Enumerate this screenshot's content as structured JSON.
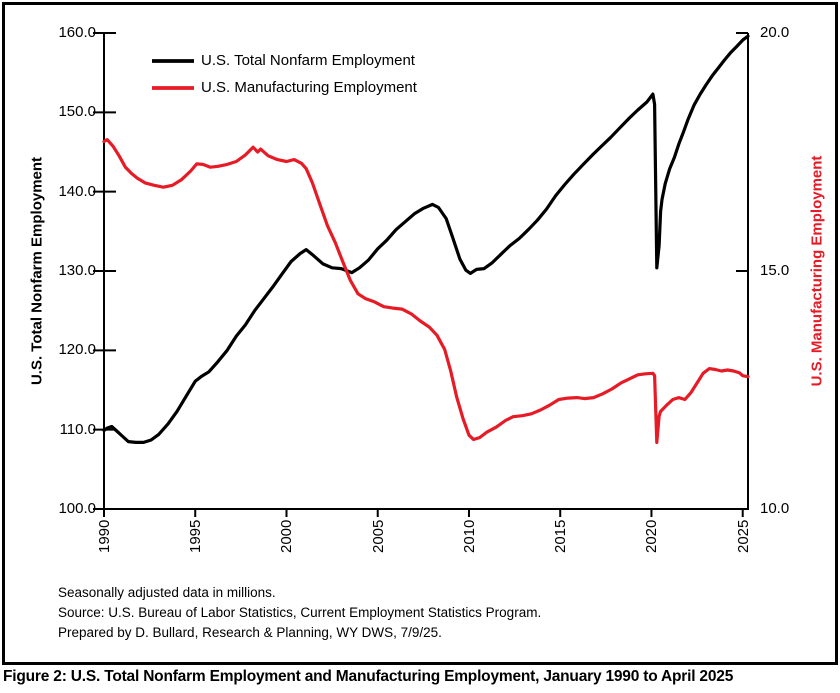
{
  "legend": {
    "series1": "U.S. Total Nonfarm Employment",
    "series2": "U.S. Manufacturing Employment"
  },
  "left_axis": {
    "title": "U.S. Total Nonfarm Employment",
    "ticks": [
      "160.0",
      "150.0",
      "140.0",
      "130.0",
      "120.0",
      "110.0",
      "100.0"
    ]
  },
  "right_axis": {
    "title": "U.S. Manufacturing Employment",
    "ticks": [
      "20.0",
      "15.0",
      "10.0"
    ]
  },
  "x_axis": {
    "ticks": [
      "1990",
      "1995",
      "2000",
      "2005",
      "2010",
      "2015",
      "2020",
      "2025"
    ]
  },
  "notes": [
    "Seasonally adjusted data in millions.",
    "Source: U.S. Bureau of Labor Statistics, Current Employment Statistics Program.",
    "Prepared by D. Bullard, Research & Planning, WY DWS, 7/9/25."
  ],
  "caption": "Figure 2: U.S. Total Nonfarm Employment and Manufacturing Employment, January 1990 to April 2025",
  "colors": {
    "nonfarm": "#000000",
    "manufacturing": "#e61b25"
  },
  "chart_data": {
    "type": "line",
    "title": "",
    "xlabel": "",
    "x_range": [
      1990,
      2025.29
    ],
    "left_ylabel": "U.S. Total Nonfarm Employment",
    "right_ylabel": "U.S. Manufacturing Employment",
    "left_ylim": [
      100,
      160
    ],
    "right_ylim": [
      10,
      20
    ],
    "grid": false,
    "legend_position": "top-left-inside",
    "units": "millions, seasonally adjusted",
    "series": [
      {
        "name": "U.S. Total Nonfarm Employment",
        "axis": "left",
        "color": "#000000",
        "points": [
          [
            1990.0,
            109.9
          ],
          [
            1990.17,
            110.2
          ],
          [
            1990.42,
            110.4
          ],
          [
            1990.67,
            109.9
          ],
          [
            1991.0,
            109.2
          ],
          [
            1991.33,
            108.5
          ],
          [
            1991.75,
            108.4
          ],
          [
            1992.17,
            108.4
          ],
          [
            1992.58,
            108.7
          ],
          [
            1993.0,
            109.4
          ],
          [
            1993.5,
            110.7
          ],
          [
            1994.0,
            112.3
          ],
          [
            1994.5,
            114.2
          ],
          [
            1995.0,
            116.1
          ],
          [
            1995.33,
            116.7
          ],
          [
            1995.75,
            117.3
          ],
          [
            1996.25,
            118.6
          ],
          [
            1996.75,
            120.0
          ],
          [
            1997.25,
            121.8
          ],
          [
            1997.75,
            123.2
          ],
          [
            1998.25,
            125.0
          ],
          [
            1998.75,
            126.5
          ],
          [
            1999.25,
            128.0
          ],
          [
            1999.75,
            129.6
          ],
          [
            2000.25,
            131.2
          ],
          [
            2000.75,
            132.2
          ],
          [
            2001.08,
            132.7
          ],
          [
            2001.5,
            131.9
          ],
          [
            2002.0,
            130.9
          ],
          [
            2002.5,
            130.4
          ],
          [
            2003.0,
            130.3
          ],
          [
            2003.58,
            129.8
          ],
          [
            2004.0,
            130.4
          ],
          [
            2004.5,
            131.4
          ],
          [
            2005.0,
            132.8
          ],
          [
            2005.5,
            133.9
          ],
          [
            2006.0,
            135.2
          ],
          [
            2006.5,
            136.2
          ],
          [
            2007.0,
            137.2
          ],
          [
            2007.5,
            137.9
          ],
          [
            2008.0,
            138.4
          ],
          [
            2008.33,
            138.0
          ],
          [
            2008.75,
            136.6
          ],
          [
            2009.08,
            134.4
          ],
          [
            2009.5,
            131.5
          ],
          [
            2009.83,
            130.1
          ],
          [
            2010.08,
            129.7
          ],
          [
            2010.42,
            130.2
          ],
          [
            2010.83,
            130.3
          ],
          [
            2011.25,
            131.0
          ],
          [
            2011.75,
            132.1
          ],
          [
            2012.25,
            133.2
          ],
          [
            2012.75,
            134.1
          ],
          [
            2013.25,
            135.2
          ],
          [
            2013.75,
            136.4
          ],
          [
            2014.25,
            137.8
          ],
          [
            2014.75,
            139.5
          ],
          [
            2015.25,
            140.9
          ],
          [
            2015.75,
            142.2
          ],
          [
            2016.25,
            143.4
          ],
          [
            2016.75,
            144.6
          ],
          [
            2017.25,
            145.7
          ],
          [
            2017.75,
            146.8
          ],
          [
            2018.25,
            148.0
          ],
          [
            2018.75,
            149.2
          ],
          [
            2019.25,
            150.3
          ],
          [
            2019.75,
            151.3
          ],
          [
            2020.08,
            152.3
          ],
          [
            2020.17,
            151.0
          ],
          [
            2020.29,
            130.4
          ],
          [
            2020.42,
            133.2
          ],
          [
            2020.5,
            137.5
          ],
          [
            2020.58,
            139.0
          ],
          [
            2020.75,
            141.0
          ],
          [
            2021.0,
            142.9
          ],
          [
            2021.25,
            144.3
          ],
          [
            2021.5,
            146.0
          ],
          [
            2021.75,
            147.5
          ],
          [
            2022.0,
            149.1
          ],
          [
            2022.33,
            150.9
          ],
          [
            2022.67,
            152.3
          ],
          [
            2023.0,
            153.5
          ],
          [
            2023.33,
            154.6
          ],
          [
            2023.67,
            155.6
          ],
          [
            2024.0,
            156.6
          ],
          [
            2024.33,
            157.5
          ],
          [
            2024.67,
            158.3
          ],
          [
            2025.0,
            159.1
          ],
          [
            2025.29,
            159.6
          ]
        ]
      },
      {
        "name": "U.S. Manufacturing Employment",
        "axis": "right",
        "color": "#e61b25",
        "points": [
          [
            1990.0,
            17.72
          ],
          [
            1990.17,
            17.76
          ],
          [
            1990.5,
            17.62
          ],
          [
            1990.83,
            17.42
          ],
          [
            1991.17,
            17.18
          ],
          [
            1991.5,
            17.05
          ],
          [
            1991.83,
            16.95
          ],
          [
            1992.25,
            16.85
          ],
          [
            1992.75,
            16.8
          ],
          [
            1993.25,
            16.76
          ],
          [
            1993.75,
            16.8
          ],
          [
            1994.25,
            16.92
          ],
          [
            1994.75,
            17.1
          ],
          [
            1995.08,
            17.25
          ],
          [
            1995.42,
            17.24
          ],
          [
            1995.83,
            17.18
          ],
          [
            1996.25,
            17.2
          ],
          [
            1996.75,
            17.24
          ],
          [
            1997.25,
            17.3
          ],
          [
            1997.75,
            17.44
          ],
          [
            1998.17,
            17.6
          ],
          [
            1998.42,
            17.5
          ],
          [
            1998.58,
            17.56
          ],
          [
            1999.0,
            17.42
          ],
          [
            1999.5,
            17.34
          ],
          [
            2000.0,
            17.3
          ],
          [
            2000.42,
            17.34
          ],
          [
            2000.83,
            17.26
          ],
          [
            2001.08,
            17.15
          ],
          [
            2001.42,
            16.85
          ],
          [
            2001.83,
            16.4
          ],
          [
            2002.25,
            15.95
          ],
          [
            2002.67,
            15.6
          ],
          [
            2003.08,
            15.2
          ],
          [
            2003.5,
            14.8
          ],
          [
            2003.92,
            14.52
          ],
          [
            2004.33,
            14.42
          ],
          [
            2004.83,
            14.35
          ],
          [
            2005.33,
            14.25
          ],
          [
            2005.83,
            14.22
          ],
          [
            2006.33,
            14.2
          ],
          [
            2006.83,
            14.1
          ],
          [
            2007.33,
            13.95
          ],
          [
            2007.83,
            13.82
          ],
          [
            2008.25,
            13.65
          ],
          [
            2008.67,
            13.35
          ],
          [
            2009.0,
            12.9
          ],
          [
            2009.33,
            12.35
          ],
          [
            2009.67,
            11.9
          ],
          [
            2010.0,
            11.55
          ],
          [
            2010.25,
            11.46
          ],
          [
            2010.58,
            11.5
          ],
          [
            2011.0,
            11.62
          ],
          [
            2011.5,
            11.72
          ],
          [
            2012.0,
            11.86
          ],
          [
            2012.42,
            11.94
          ],
          [
            2012.92,
            11.96
          ],
          [
            2013.42,
            12.0
          ],
          [
            2013.92,
            12.08
          ],
          [
            2014.42,
            12.18
          ],
          [
            2014.92,
            12.3
          ],
          [
            2015.42,
            12.33
          ],
          [
            2015.92,
            12.34
          ],
          [
            2016.33,
            12.32
          ],
          [
            2016.83,
            12.34
          ],
          [
            2017.33,
            12.42
          ],
          [
            2017.83,
            12.52
          ],
          [
            2018.33,
            12.65
          ],
          [
            2018.83,
            12.74
          ],
          [
            2019.25,
            12.82
          ],
          [
            2019.67,
            12.84
          ],
          [
            2020.08,
            12.85
          ],
          [
            2020.17,
            12.8
          ],
          [
            2020.29,
            11.4
          ],
          [
            2020.42,
            11.95
          ],
          [
            2020.5,
            12.05
          ],
          [
            2020.58,
            12.08
          ],
          [
            2020.83,
            12.18
          ],
          [
            2021.17,
            12.3
          ],
          [
            2021.5,
            12.34
          ],
          [
            2021.83,
            12.3
          ],
          [
            2022.17,
            12.45
          ],
          [
            2022.5,
            12.65
          ],
          [
            2022.83,
            12.85
          ],
          [
            2023.17,
            12.95
          ],
          [
            2023.5,
            12.93
          ],
          [
            2023.83,
            12.9
          ],
          [
            2024.17,
            12.92
          ],
          [
            2024.5,
            12.9
          ],
          [
            2024.83,
            12.86
          ],
          [
            2025.0,
            12.8
          ],
          [
            2025.29,
            12.78
          ]
        ]
      }
    ]
  }
}
